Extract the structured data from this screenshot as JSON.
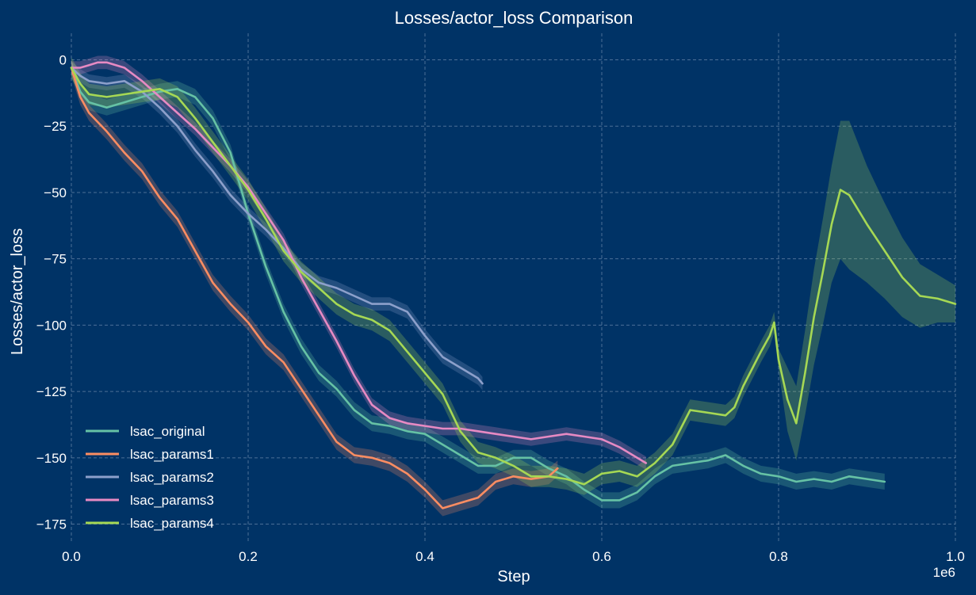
{
  "chart_data": {
    "type": "line",
    "title": "Losses/actor_loss Comparison",
    "xlabel": "Step",
    "ylabel": "Losses/actor_loss",
    "x_offset_label": "1e6",
    "xlim": [
      0,
      1.0
    ],
    "ylim": [
      -182,
      10
    ],
    "x_ticks": [
      0.0,
      0.2,
      0.4,
      0.6,
      0.8,
      1.0
    ],
    "x_tick_labels": [
      "0.0",
      "0.2",
      "0.4",
      "0.6",
      "0.8",
      "1.0"
    ],
    "y_ticks": [
      0,
      -25,
      -50,
      -75,
      -100,
      -125,
      -150,
      -175
    ],
    "y_tick_labels": [
      "0",
      "−25",
      "−50",
      "−75",
      "−100",
      "−125",
      "−150",
      "−175"
    ],
    "grid": true,
    "legend_position": "lower-left",
    "background": "#003366",
    "series": [
      {
        "name": "lsac_original",
        "color": "#66c2a5",
        "x": [
          0.0,
          0.01,
          0.02,
          0.04,
          0.06,
          0.08,
          0.1,
          0.12,
          0.14,
          0.16,
          0.18,
          0.2,
          0.22,
          0.24,
          0.26,
          0.28,
          0.3,
          0.32,
          0.34,
          0.36,
          0.38,
          0.4,
          0.42,
          0.44,
          0.46,
          0.48,
          0.5,
          0.52,
          0.54,
          0.56,
          0.58,
          0.6,
          0.62,
          0.64,
          0.66,
          0.68,
          0.7,
          0.72,
          0.74,
          0.76,
          0.78,
          0.8,
          0.82,
          0.84,
          0.86,
          0.88,
          0.9,
          0.92
        ],
        "y": [
          -3,
          -12,
          -16,
          -18,
          -16,
          -14,
          -12,
          -11,
          -14,
          -22,
          -35,
          -58,
          -78,
          -95,
          -108,
          -118,
          -124,
          -132,
          -137,
          -138,
          -140,
          -141,
          -145,
          -149,
          -153,
          -153,
          -150,
          -150,
          -154,
          -157,
          -162,
          -166,
          -166,
          -163,
          -157,
          -153,
          -152,
          -151,
          -149,
          -153,
          -156,
          -157,
          -159,
          -158,
          -159,
          -157,
          -158,
          -159
        ],
        "band": 3
      },
      {
        "name": "lsac_params1",
        "color": "#fc8d62",
        "x": [
          0.0,
          0.01,
          0.02,
          0.04,
          0.06,
          0.08,
          0.1,
          0.12,
          0.14,
          0.16,
          0.18,
          0.2,
          0.22,
          0.24,
          0.26,
          0.28,
          0.3,
          0.32,
          0.34,
          0.36,
          0.38,
          0.4,
          0.42,
          0.44,
          0.46,
          0.48,
          0.5,
          0.52,
          0.54,
          0.55
        ],
        "y": [
          -3,
          -14,
          -20,
          -27,
          -35,
          -42,
          -52,
          -60,
          -72,
          -84,
          -92,
          -99,
          -108,
          -114,
          -124,
          -134,
          -144,
          -149,
          -150,
          -152,
          -156,
          -162,
          -169,
          -167,
          -165,
          -159,
          -157,
          -158,
          -157,
          -154
        ],
        "band": 3
      },
      {
        "name": "lsac_params2",
        "color": "#8da0cb",
        "x": [
          0.0,
          0.01,
          0.02,
          0.04,
          0.06,
          0.08,
          0.1,
          0.12,
          0.14,
          0.16,
          0.18,
          0.2,
          0.22,
          0.24,
          0.26,
          0.28,
          0.3,
          0.32,
          0.34,
          0.36,
          0.38,
          0.4,
          0.42,
          0.44,
          0.46,
          0.465
        ],
        "y": [
          -3,
          -6,
          -8,
          -9,
          -8,
          -12,
          -18,
          -25,
          -34,
          -42,
          -51,
          -58,
          -64,
          -71,
          -79,
          -84,
          -86,
          -89,
          -92,
          -92,
          -95,
          -104,
          -112,
          -116,
          -120,
          -122
        ],
        "band": 2.5
      },
      {
        "name": "lsac_params3",
        "color": "#e78ac3",
        "x": [
          0.0,
          0.01,
          0.02,
          0.03,
          0.04,
          0.06,
          0.08,
          0.1,
          0.12,
          0.14,
          0.16,
          0.18,
          0.2,
          0.22,
          0.24,
          0.26,
          0.28,
          0.3,
          0.32,
          0.34,
          0.36,
          0.38,
          0.4,
          0.42,
          0.44,
          0.46,
          0.48,
          0.5,
          0.52,
          0.54,
          0.56,
          0.58,
          0.6,
          0.62,
          0.64,
          0.65
        ],
        "y": [
          -3,
          -3,
          -2,
          -1,
          -1,
          -3,
          -8,
          -14,
          -20,
          -26,
          -33,
          -40,
          -48,
          -58,
          -68,
          -82,
          -94,
          -106,
          -119,
          -130,
          -135,
          -137,
          -138,
          -139,
          -139,
          -140,
          -141,
          -142,
          -143,
          -142,
          -141,
          -142,
          -143,
          -146,
          -150,
          -152
        ],
        "band": 2.5
      },
      {
        "name": "lsac_params4",
        "color": "#a6d854",
        "x": [
          0.0,
          0.01,
          0.02,
          0.04,
          0.06,
          0.08,
          0.1,
          0.12,
          0.14,
          0.16,
          0.18,
          0.2,
          0.22,
          0.24,
          0.26,
          0.28,
          0.3,
          0.32,
          0.34,
          0.36,
          0.38,
          0.4,
          0.42,
          0.44,
          0.46,
          0.48,
          0.5,
          0.52,
          0.54,
          0.56,
          0.58,
          0.6,
          0.62,
          0.64,
          0.66,
          0.68,
          0.7,
          0.72,
          0.74,
          0.75,
          0.76,
          0.78,
          0.79,
          0.795,
          0.8,
          0.81,
          0.82,
          0.83,
          0.84,
          0.85,
          0.86,
          0.87,
          0.88,
          0.9,
          0.92,
          0.94,
          0.96,
          0.98,
          1.0
        ],
        "y": [
          -3,
          -9,
          -13,
          -14,
          -13,
          -12,
          -11,
          -14,
          -22,
          -31,
          -40,
          -49,
          -60,
          -72,
          -80,
          -86,
          -92,
          -96,
          -98,
          -102,
          -110,
          -118,
          -126,
          -140,
          -148,
          -150,
          -153,
          -157,
          -157,
          -158,
          -160,
          -156,
          -155,
          -157,
          -152,
          -145,
          -132,
          -133,
          -134,
          -131,
          -123,
          -110,
          -104,
          -99,
          -113,
          -128,
          -137,
          -118,
          -97,
          -80,
          -62,
          -49,
          -51,
          -62,
          -72,
          -82,
          -89,
          -90,
          -92
        ],
        "band": 4
      }
    ],
    "bands": [
      {
        "series": "lsac_params4",
        "x": [
          0.8,
          0.82,
          0.84,
          0.86,
          0.87,
          0.88,
          0.9,
          0.92,
          0.94,
          0.96,
          0.98,
          1.0
        ],
        "extra": [
          6,
          10,
          14,
          18,
          22,
          24,
          18,
          14,
          11,
          8,
          5,
          3
        ]
      }
    ]
  }
}
